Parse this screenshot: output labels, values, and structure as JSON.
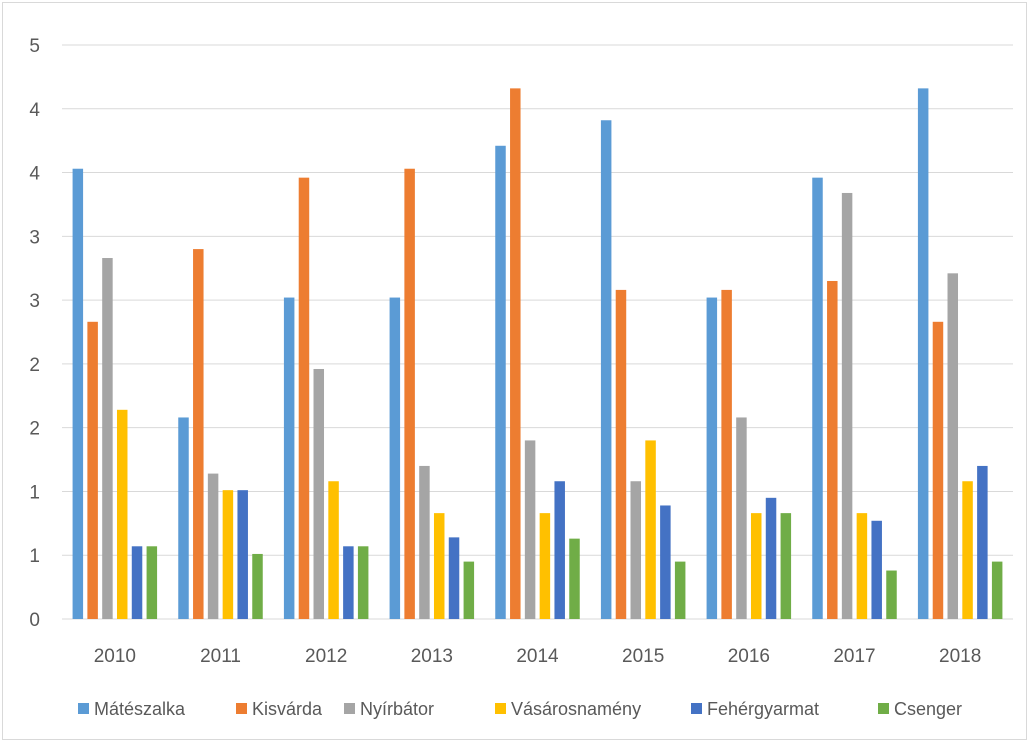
{
  "chart_data": {
    "type": "bar",
    "title": "",
    "xlabel": "",
    "ylabel": "",
    "ylim": [
      0,
      4.5
    ],
    "yticks": [
      0,
      0.5,
      1,
      1.5,
      2,
      2.5,
      3,
      3.5,
      4,
      4.5
    ],
    "ytick_labels": [
      "0",
      "1",
      "1",
      "2",
      "2",
      "3",
      "3",
      "4",
      "4",
      "5"
    ],
    "grid": true,
    "legend_position": "bottom",
    "categories": [
      "2010",
      "2011",
      "2012",
      "2013",
      "2014",
      "2015",
      "2016",
      "2017",
      "2018"
    ],
    "series": [
      {
        "name": "Mátészalka",
        "color": "#5b9bd5",
        "values": [
          3.53,
          1.58,
          2.52,
          2.52,
          3.71,
          3.91,
          2.52,
          3.46,
          4.16
        ]
      },
      {
        "name": "Kisvárda",
        "color": "#ed7d31",
        "values": [
          2.33,
          2.9,
          3.46,
          3.53,
          4.16,
          2.58,
          2.58,
          2.65,
          2.33
        ]
      },
      {
        "name": "Nyírbátor",
        "color": "#a5a5a5",
        "values": [
          2.83,
          1.14,
          1.96,
          1.2,
          1.4,
          1.08,
          1.58,
          3.34,
          2.71
        ]
      },
      {
        "name": "Vásárosnamény",
        "color": "#ffc000",
        "values": [
          1.64,
          1.01,
          1.08,
          0.83,
          0.83,
          1.4,
          0.83,
          0.83,
          1.08
        ]
      },
      {
        "name": "Fehérgyarmat",
        "color": "#4472c4",
        "values": [
          0.57,
          1.01,
          0.57,
          0.64,
          1.08,
          0.89,
          0.95,
          0.77,
          1.2
        ]
      },
      {
        "name": "Csenger",
        "color": "#70ad47",
        "values": [
          0.57,
          0.51,
          0.57,
          0.45,
          0.63,
          0.45,
          0.83,
          0.38,
          0.45
        ]
      }
    ]
  }
}
